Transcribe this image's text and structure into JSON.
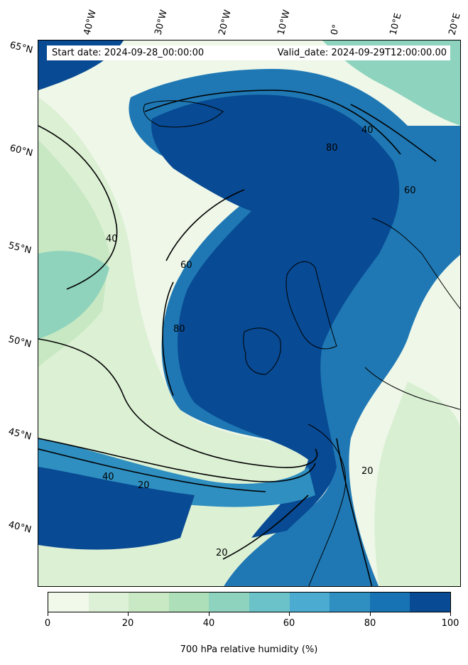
{
  "info": {
    "start_date": "Start date: 2024-09-28_00:00:00",
    "valid_date": "Valid_date: 2024-09-29T12:00:00.00"
  },
  "lat_labels": [
    "65°N",
    "60°N",
    "55°N",
    "50°N",
    "45°N",
    "40°N"
  ],
  "lon_labels": [
    "40°W",
    "30°W",
    "20°W",
    "10°W",
    "0°",
    "10°E",
    "20°E"
  ],
  "contour_labels": [
    "20",
    "40",
    "60",
    "80"
  ],
  "colorbar": {
    "label": "700 hPa relative humidity (%)",
    "ticks": [
      "0",
      "20",
      "40",
      "60",
      "80",
      "100"
    ],
    "colors": [
      "#f1f9ea",
      "#ddf1d6",
      "#c9e9c4",
      "#ade0b8",
      "#8dd3bd",
      "#6bc2c9",
      "#4cabd0",
      "#2f8fc0",
      "#1873b4",
      "#084a93"
    ]
  }
}
